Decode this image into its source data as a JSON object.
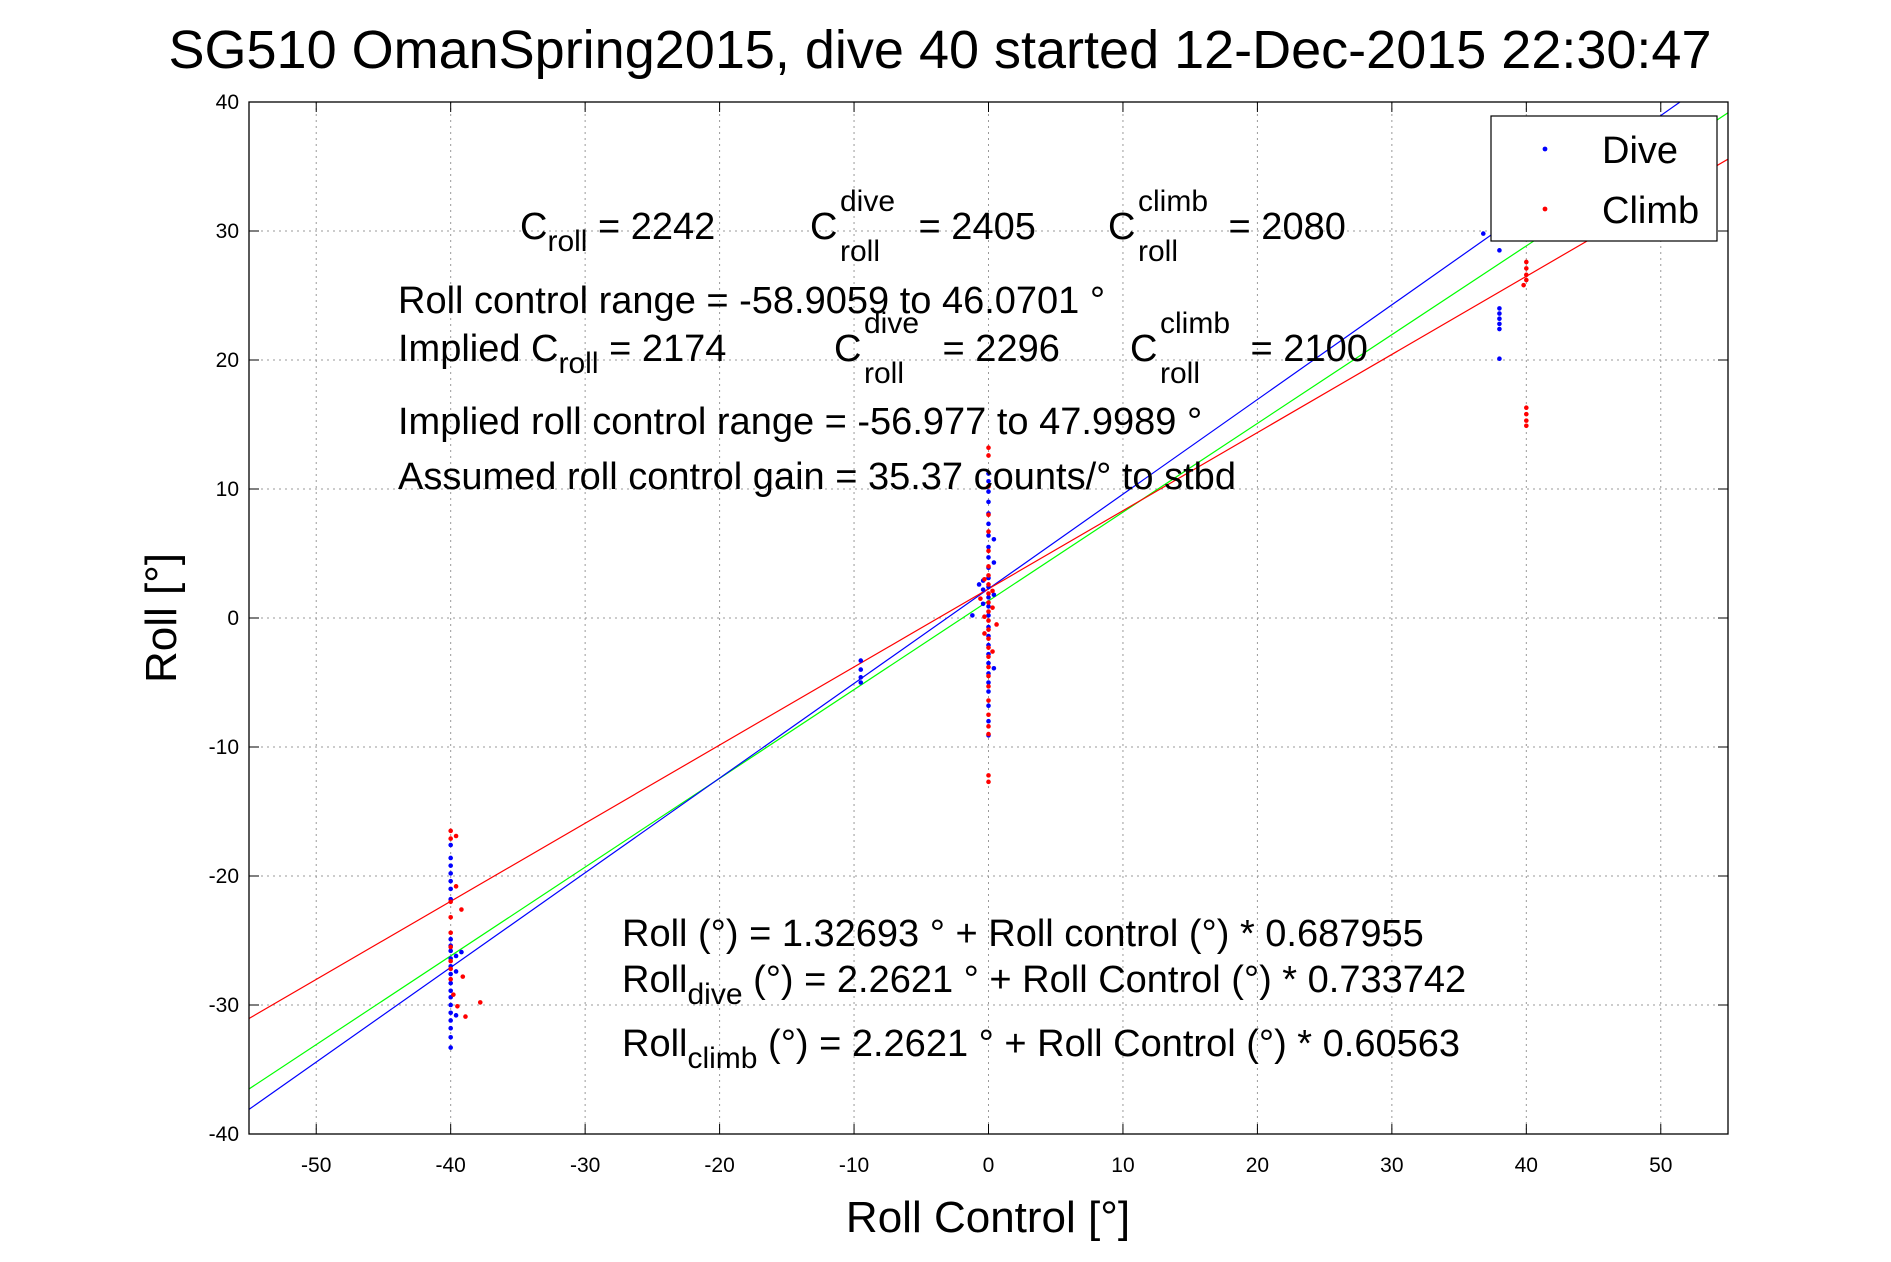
{
  "chart_data": {
    "type": "scatter",
    "title": "SG510 OmanSpring2015, dive 40 started 12-Dec-2015 22:30:47",
    "xlabel": "Roll Control [°]",
    "ylabel": "Roll [°]",
    "xlim": [
      -55,
      55
    ],
    "ylim": [
      -40,
      40
    ],
    "xticks": [
      -50,
      -40,
      -30,
      -20,
      -10,
      0,
      10,
      20,
      30,
      40,
      50
    ],
    "yticks": [
      -40,
      -30,
      -20,
      -10,
      0,
      10,
      20,
      30,
      40
    ],
    "grid": true,
    "legend_position": "top-right",
    "series": [
      {
        "name": "Dive",
        "color": "#0000ff",
        "points": [
          [
            -40,
            -33.3
          ],
          [
            -40,
            -32.5
          ],
          [
            -40,
            -31.8
          ],
          [
            -40,
            -31.2
          ],
          [
            -40,
            -30.6
          ],
          [
            -40,
            -30.0
          ],
          [
            -40,
            -29.4
          ],
          [
            -40,
            -28.9
          ],
          [
            -40,
            -28.3
          ],
          [
            -40,
            -27.6
          ],
          [
            -40,
            -27.0
          ],
          [
            -40,
            -26.4
          ],
          [
            -40,
            -25.8
          ],
          [
            -40,
            -25.4
          ],
          [
            -40,
            -24.9
          ],
          [
            -40,
            -21.8
          ],
          [
            -40,
            -21.0
          ],
          [
            -40,
            -20.4
          ],
          [
            -40,
            -19.8
          ],
          [
            -40,
            -19.2
          ],
          [
            -40,
            -18.6
          ],
          [
            -40,
            -17.6
          ],
          [
            -39.6,
            -27.4
          ],
          [
            -39.6,
            -26.2
          ],
          [
            -39.6,
            -30.8
          ],
          [
            -39.2,
            -25.9
          ],
          [
            -9.5,
            -3.3
          ],
          [
            -9.5,
            -4.0
          ],
          [
            -9.5,
            -4.6
          ],
          [
            -9.5,
            -5.0
          ],
          [
            0,
            -9.1
          ],
          [
            0,
            -8.0
          ],
          [
            0,
            -6.8
          ],
          [
            0,
            -5.7
          ],
          [
            0,
            -5.0
          ],
          [
            0,
            -4.3
          ],
          [
            0,
            -3.5
          ],
          [
            0,
            -2.8
          ],
          [
            0,
            -2.1
          ],
          [
            0,
            -1.4
          ],
          [
            0,
            -0.7
          ],
          [
            0,
            0.2
          ],
          [
            0,
            0.9
          ],
          [
            0,
            1.6
          ],
          [
            0,
            2.4
          ],
          [
            0,
            3.1
          ],
          [
            0,
            3.9
          ],
          [
            0,
            4.7
          ],
          [
            0,
            5.5
          ],
          [
            0,
            6.4
          ],
          [
            0,
            7.3
          ],
          [
            0,
            8.1
          ],
          [
            0,
            9.0
          ],
          [
            0,
            9.8
          ],
          [
            0,
            10.6
          ],
          [
            0,
            11.2
          ],
          [
            -0.4,
            2.2
          ],
          [
            -0.4,
            1.1
          ],
          [
            -0.4,
            2.9
          ],
          [
            0.4,
            1.8
          ],
          [
            0.4,
            4.3
          ],
          [
            0.4,
            6.1
          ],
          [
            0.4,
            -3.9
          ],
          [
            -0.7,
            2.6
          ],
          [
            -1.2,
            0.2
          ],
          [
            36.8,
            29.8
          ],
          [
            38,
            28.5
          ],
          [
            38,
            24.0
          ],
          [
            38,
            23.6
          ],
          [
            38,
            23.2
          ],
          [
            38,
            22.8
          ],
          [
            38,
            22.4
          ],
          [
            38,
            20.1
          ]
        ]
      },
      {
        "name": "Climb",
        "color": "#ff0000",
        "points": [
          [
            -40,
            -16.5
          ],
          [
            -40,
            -17.1
          ],
          [
            -40,
            -22.0
          ],
          [
            -40,
            -23.2
          ],
          [
            -40,
            -24.4
          ],
          [
            -40,
            -25.5
          ],
          [
            -40,
            -26.6
          ],
          [
            -40,
            -27.2
          ],
          [
            -40,
            -28.0
          ],
          [
            -39.8,
            -29.2
          ],
          [
            -39.6,
            -16.9
          ],
          [
            -39.6,
            -20.8
          ],
          [
            -39.5,
            -30.1
          ],
          [
            -39.2,
            -22.6
          ],
          [
            -39.1,
            -27.8
          ],
          [
            -38.9,
            -30.9
          ],
          [
            -37.8,
            -29.8
          ],
          [
            0,
            -12.7
          ],
          [
            0,
            -12.2
          ],
          [
            0,
            -9.0
          ],
          [
            0,
            -8.4
          ],
          [
            0,
            -7.5
          ],
          [
            0,
            -6.4
          ],
          [
            0,
            -5.3
          ],
          [
            0,
            -4.5
          ],
          [
            0,
            -3.8
          ],
          [
            0,
            -3.0
          ],
          [
            0,
            -2.3
          ],
          [
            0,
            -1.6
          ],
          [
            0,
            -0.9
          ],
          [
            0,
            -0.2
          ],
          [
            0,
            0.5
          ],
          [
            0,
            1.2
          ],
          [
            0,
            1.9
          ],
          [
            0,
            2.6
          ],
          [
            0,
            3.3
          ],
          [
            0,
            4.0
          ],
          [
            0,
            5.2
          ],
          [
            0,
            6.7
          ],
          [
            0,
            8.0
          ],
          [
            0,
            10.2
          ],
          [
            0,
            12.6
          ],
          [
            0,
            13.2
          ],
          [
            -0.3,
            0.1
          ],
          [
            0.3,
            0.8
          ],
          [
            -0.3,
            -1.2
          ],
          [
            0.3,
            2.1
          ],
          [
            -0.3,
            3.0
          ],
          [
            0.3,
            -2.6
          ],
          [
            -0.6,
            1.5
          ],
          [
            0.6,
            -0.5
          ],
          [
            40,
            27.6
          ],
          [
            40,
            27.1
          ],
          [
            40,
            26.6
          ],
          [
            40,
            26.2
          ],
          [
            39.8,
            25.8
          ],
          [
            40,
            16.3
          ],
          [
            40,
            15.8
          ],
          [
            40,
            15.3
          ],
          [
            40,
            14.9
          ]
        ]
      }
    ],
    "fit_lines": [
      {
        "label": "all",
        "color": "#00ff00",
        "intercept": 1.32693,
        "slope": 0.687955
      },
      {
        "label": "dive",
        "color": "#0000ff",
        "intercept": 2.2621,
        "slope": 0.733742
      },
      {
        "label": "climb",
        "color": "#ff0000",
        "intercept": 2.2621,
        "slope": 0.60563
      }
    ]
  },
  "annotations": {
    "c_roll": {
      "base": "C",
      "sub": "roll",
      "value": " = 2242"
    },
    "c_roll_dive": {
      "base": "C",
      "sup": "dive",
      "sub": "roll",
      "value": " = 2405"
    },
    "c_roll_climb": {
      "base": "C",
      "sup": "climb",
      "sub": "roll",
      "value": " = 2080"
    },
    "range_line": "Roll control range = -58.9059 to 46.0701 °",
    "implied_prefix": "Implied C",
    "implied_sub": "roll",
    "implied_value": " = 2174",
    "implied_dive": {
      "base": "C",
      "sup": "dive",
      "sub": "roll",
      "value": " = 2296"
    },
    "implied_climb": {
      "base": "C",
      "sup": "climb",
      "sub": "roll",
      "value": " = 2100"
    },
    "implied_range_line": "Implied roll control range = -56.977 to 47.9989 °",
    "gain_line": "Assumed roll control gain = 35.37 counts/° to stbd",
    "fit_all": "Roll (°) = 1.32693 ° + Roll control (°) * 0.687955",
    "fit_dive_base": "Roll",
    "fit_dive_sub": "dive",
    "fit_dive_rest": " (°) = 2.2621 ° + Roll Control (°) * 0.733742",
    "fit_climb_base": "Roll",
    "fit_climb_sub": "climb",
    "fit_climb_rest": " (°) = 2.2621 ° + Roll Control (°) * 0.60563"
  }
}
